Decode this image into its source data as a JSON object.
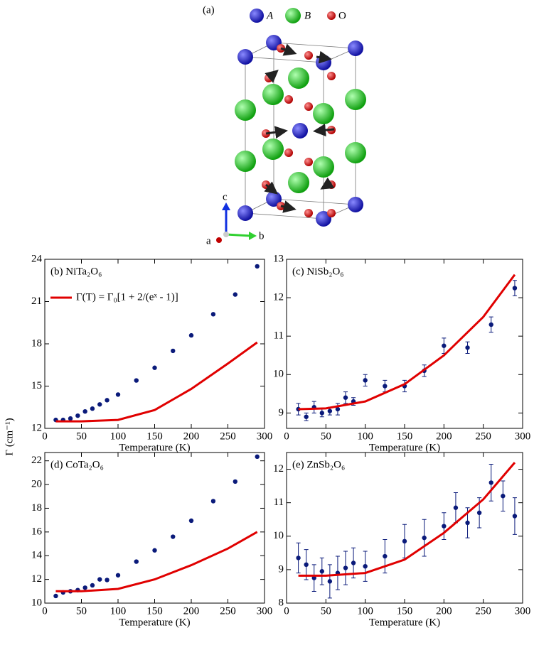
{
  "structure": {
    "label": "(a)",
    "legend": [
      "A",
      "B",
      "O"
    ],
    "axes": [
      "c",
      "a",
      "b"
    ]
  },
  "ylabel": "Γ (cm⁻¹)",
  "chart_data": [
    {
      "type": "scatter",
      "panel_label": "(b) NiTa₂O₆",
      "xlabel": "Temperature (K)",
      "xlim": [
        0,
        300
      ],
      "xticks": [
        0,
        50,
        100,
        150,
        200,
        250,
        300
      ],
      "ylim": [
        12,
        24
      ],
      "yticks": [
        12,
        15,
        18,
        21,
        24
      ],
      "series": [
        {
          "color": "#0a1a7a",
          "x": [
            15,
            25,
            35,
            45,
            55,
            65,
            75,
            85,
            100,
            125,
            150,
            175,
            200,
            230,
            260,
            290
          ],
          "values": [
            12.6,
            12.6,
            12.7,
            12.9,
            13.2,
            13.4,
            13.7,
            14.0,
            14.4,
            15.4,
            16.3,
            17.5,
            18.6,
            20.1,
            21.5,
            23.5
          ]
        },
        {
          "type": "line",
          "name": "Γ(T) = Γ₀[1 + 2/(eˣ - 1)]",
          "color": "#e00000",
          "x": [
            15,
            50,
            100,
            150,
            200,
            250,
            290
          ],
          "values": [
            12.5,
            12.5,
            12.6,
            13.3,
            14.8,
            16.6,
            18.1
          ]
        }
      ]
    },
    {
      "type": "scatter",
      "panel_label": "(c) NiSb₂O₆",
      "xlabel": "Temperature (K)",
      "xlim": [
        0,
        300
      ],
      "xticks": [
        0,
        50,
        100,
        150,
        200,
        250,
        300
      ],
      "ylim": [
        8.6,
        13
      ],
      "yticks": [
        9,
        10,
        11,
        12,
        13
      ],
      "series": [
        {
          "color": "#0a1a7a",
          "x": [
            15,
            25,
            35,
            45,
            55,
            65,
            75,
            85,
            100,
            125,
            150,
            175,
            200,
            230,
            260,
            290
          ],
          "values": [
            9.1,
            8.9,
            9.15,
            9.0,
            9.05,
            9.1,
            9.4,
            9.3,
            9.85,
            9.7,
            9.7,
            10.1,
            10.75,
            10.7,
            11.3,
            12.25
          ],
          "errors": [
            0.15,
            0.1,
            0.15,
            0.1,
            0.1,
            0.15,
            0.15,
            0.1,
            0.15,
            0.15,
            0.15,
            0.15,
            0.2,
            0.15,
            0.2,
            0.2
          ]
        },
        {
          "type": "line",
          "color": "#e00000",
          "x": [
            15,
            50,
            100,
            150,
            200,
            250,
            290
          ],
          "values": [
            9.1,
            9.12,
            9.3,
            9.75,
            10.5,
            11.5,
            12.6
          ]
        }
      ]
    },
    {
      "type": "scatter",
      "panel_label": "(d) CoTa₂O₆",
      "xlabel": "Temperature (K)",
      "xlim": [
        0,
        300
      ],
      "xticks": [
        0,
        50,
        100,
        150,
        200,
        250,
        300
      ],
      "ylim": [
        10,
        22.7
      ],
      "yticks": [
        10,
        12,
        14,
        16,
        18,
        20,
        22
      ],
      "series": [
        {
          "color": "#0a1a7a",
          "x": [
            15,
            25,
            35,
            45,
            55,
            65,
            75,
            85,
            100,
            125,
            150,
            175,
            200,
            230,
            260,
            290
          ],
          "values": [
            10.6,
            10.9,
            11.0,
            11.1,
            11.3,
            11.5,
            12.0,
            11.95,
            12.35,
            13.5,
            14.45,
            15.6,
            16.95,
            18.6,
            20.25,
            22.35
          ]
        },
        {
          "type": "line",
          "color": "#e00000",
          "x": [
            15,
            50,
            100,
            150,
            200,
            250,
            290
          ],
          "values": [
            11.0,
            11.0,
            11.2,
            12.0,
            13.2,
            14.6,
            16.0
          ]
        }
      ]
    },
    {
      "type": "scatter",
      "panel_label": "(e) ZnSb₂O₆",
      "xlabel": "Temperature (K)",
      "xlim": [
        0,
        300
      ],
      "xticks": [
        0,
        50,
        100,
        150,
        200,
        250,
        300
      ],
      "ylim": [
        8,
        12.5
      ],
      "yticks": [
        8,
        9,
        10,
        11,
        12
      ],
      "series": [
        {
          "color": "#0a1a7a",
          "x": [
            15,
            25,
            35,
            45,
            55,
            65,
            75,
            85,
            100,
            125,
            150,
            175,
            200,
            215,
            230,
            245,
            260,
            275,
            290
          ],
          "values": [
            9.35,
            9.15,
            8.75,
            8.95,
            8.65,
            8.9,
            9.05,
            9.2,
            9.1,
            9.4,
            9.85,
            9.95,
            10.3,
            10.85,
            10.4,
            10.7,
            11.6,
            11.2,
            10.6
          ],
          "errors": [
            0.45,
            0.45,
            0.4,
            0.4,
            0.5,
            0.5,
            0.5,
            0.45,
            0.45,
            0.5,
            0.5,
            0.55,
            0.4,
            0.45,
            0.45,
            0.45,
            0.55,
            0.45,
            0.55
          ]
        },
        {
          "type": "line",
          "color": "#e00000",
          "x": [
            15,
            50,
            100,
            150,
            200,
            250,
            290
          ],
          "values": [
            8.82,
            8.82,
            8.9,
            9.3,
            10.1,
            11.1,
            12.2
          ]
        }
      ]
    }
  ]
}
